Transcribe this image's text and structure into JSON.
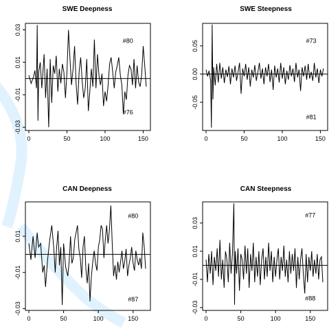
{
  "chart_data": [
    {
      "type": "line",
      "title": "SWE Deepness",
      "xlim": [
        0,
        155
      ],
      "ylim": [
        -0.032,
        0.034
      ],
      "xticks": [
        0,
        50,
        100,
        150
      ],
      "yticks": [
        -0.03,
        -0.01,
        0.01,
        0.03
      ],
      "xtick_labels": [
        "0",
        "50",
        "100",
        "150"
      ],
      "ytick_labels": [
        "-0.03",
        "-0.01",
        "0.01",
        "0.03"
      ],
      "annotations": [
        {
          "text": "#80",
          "x": 130,
          "y": 0.022
        },
        {
          "text": "#76",
          "x": 130,
          "y": -0.022
        }
      ],
      "x": [
        0,
        3,
        6,
        8,
        10,
        11,
        12,
        13,
        15,
        17,
        20,
        22,
        24,
        26,
        28,
        30,
        32,
        34,
        36,
        38,
        40,
        42,
        44,
        46,
        48,
        50,
        52,
        54,
        56,
        58,
        60,
        62,
        64,
        66,
        68,
        70,
        72,
        74,
        76,
        78,
        80,
        82,
        84,
        86,
        88,
        90,
        92,
        94,
        96,
        98,
        100,
        102,
        104,
        106,
        108,
        110,
        112,
        114,
        116,
        118,
        120,
        122,
        124,
        126,
        128,
        130,
        132,
        134,
        136,
        138,
        140,
        142,
        144,
        146,
        148,
        150,
        152,
        154
      ],
      "values": [
        0.002,
        -0.003,
        0.001,
        0.005,
        -0.006,
        0.033,
        -0.026,
        0.004,
        0.01,
        -0.006,
        0.015,
        -0.012,
        0.006,
        -0.03,
        0.012,
        -0.015,
        0.008,
        0.003,
        0.014,
        -0.008,
        0.006,
        -0.003,
        0.009,
        0.004,
        -0.012,
        0.004,
        0.03,
        0.012,
        -0.004,
        0.006,
        0.02,
        -0.003,
        -0.016,
        0.004,
        0.013,
        -0.002,
        -0.012,
        -0.006,
        0.012,
        -0.02,
        -0.008,
        0.006,
        -0.005,
        0.024,
        -0.006,
        0.015,
        0.002,
        -0.004,
        0.003,
        -0.017,
        -0.008,
        -0.014,
        -0.004,
        0.009,
        0.013,
        0.004,
        -0.006,
        0.004,
        0.008,
        0.013,
        0.002,
        -0.004,
        -0.022,
        -0.008,
        -0.013,
        0.002,
        0.008,
        0.006,
        -0.004,
        0.012,
        -0.006,
        0.008,
        -0.002,
        -0.005,
        0.002,
        0.02,
        0.008,
        -0.005
      ],
      "grid": false
    },
    {
      "type": "line",
      "title": "SWE Steepness",
      "xlim": [
        0,
        155
      ],
      "ylim": [
        -0.1,
        0.09
      ],
      "xticks": [
        0,
        50,
        100,
        150
      ],
      "yticks": [
        -0.05,
        0.0,
        0.05
      ],
      "xtick_labels": [
        "0",
        "50",
        "100",
        "150"
      ],
      "ytick_labels": [
        "-0.05",
        "0.00",
        "0.05"
      ],
      "annotations": [
        {
          "text": "#73",
          "x": 138,
          "y": 0.055
        },
        {
          "text": "#81",
          "x": 138,
          "y": -0.08
        }
      ],
      "x": [
        0,
        2,
        4,
        6,
        7,
        8,
        9,
        10,
        12,
        14,
        16,
        18,
        20,
        22,
        24,
        26,
        28,
        30,
        32,
        34,
        36,
        38,
        40,
        42,
        44,
        46,
        48,
        50,
        52,
        54,
        56,
        58,
        60,
        62,
        64,
        66,
        68,
        70,
        72,
        74,
        76,
        78,
        80,
        82,
        84,
        86,
        88,
        90,
        92,
        94,
        96,
        98,
        100,
        102,
        104,
        106,
        108,
        110,
        112,
        114,
        116,
        118,
        120,
        122,
        124,
        126,
        128,
        130,
        132,
        134,
        136,
        138,
        140,
        142,
        144,
        146,
        148,
        150,
        152,
        154
      ],
      "values": [
        0.008,
        -0.004,
        0.006,
        -0.012,
        -0.095,
        0.088,
        -0.045,
        0.012,
        -0.02,
        0.018,
        -0.015,
        0.02,
        -0.008,
        0.012,
        -0.016,
        0.008,
        -0.005,
        0.014,
        -0.018,
        0.01,
        -0.006,
        0.015,
        -0.012,
        0.004,
        0.02,
        -0.035,
        0.01,
        -0.004,
        0.018,
        -0.01,
        0.012,
        -0.022,
        0.008,
        -0.006,
        0.016,
        -0.012,
        0.004,
        0.02,
        -0.008,
        0.01,
        -0.018,
        0.012,
        -0.004,
        0.018,
        -0.014,
        0.008,
        -0.028,
        0.015,
        -0.006,
        0.01,
        -0.015,
        0.02,
        -0.008,
        0.012,
        -0.018,
        0.006,
        -0.01,
        0.016,
        -0.004,
        0.01,
        -0.014,
        0.02,
        -0.006,
        0.008,
        -0.03,
        0.012,
        -0.004,
        0.015,
        -0.01,
        0.018,
        -0.008,
        0.004,
        -0.012,
        0.02,
        -0.006,
        0.01,
        -0.016,
        0.008,
        -0.004,
        0.01
      ],
      "grid": false
    },
    {
      "type": "line",
      "title": "CAN Deepness",
      "xlim": [
        0,
        170
      ],
      "ylim": [
        -0.031,
        0.029
      ],
      "xticks": [
        0,
        50,
        100,
        150
      ],
      "yticks": [
        -0.03,
        -0.01,
        0.01
      ],
      "xtick_labels": [
        "0",
        "50",
        "100",
        "150"
      ],
      "ytick_labels": [
        "-0.03",
        "-0.01",
        "0.01"
      ],
      "annotations": [
        {
          "text": "#80",
          "x": 150,
          "y": 0.02
        },
        {
          "text": "#87",
          "x": 150,
          "y": -0.026
        }
      ],
      "x": [
        0,
        3,
        6,
        9,
        12,
        14,
        17,
        20,
        22,
        24,
        27,
        30,
        33,
        36,
        38,
        40,
        42,
        44,
        46,
        48,
        50,
        53,
        56,
        58,
        60,
        62,
        64,
        66,
        68,
        70,
        72,
        74,
        76,
        78,
        80,
        82,
        84,
        86,
        88,
        90,
        92,
        94,
        96,
        98,
        100,
        102,
        104,
        106,
        108,
        110,
        112,
        114,
        116,
        118,
        120,
        122,
        124,
        126,
        128,
        130,
        132,
        134,
        136,
        138,
        140,
        142,
        144,
        146,
        148,
        150,
        152,
        154,
        156,
        158,
        160,
        162,
        164,
        166,
        168
      ],
      "values": [
        0.006,
        -0.003,
        0.01,
        -0.002,
        0.012,
        0.004,
        0.006,
        -0.01,
        -0.006,
        -0.018,
        -0.003,
        0.008,
        0.016,
        0.003,
        -0.01,
        0.004,
        0.013,
        -0.006,
        0.004,
        -0.028,
        0.006,
        -0.007,
        -0.012,
        -0.004,
        0.01,
        -0.005,
        -0.002,
        0.008,
        0.012,
        0.016,
        0.003,
        -0.002,
        -0.013,
        0.004,
        0.01,
        -0.008,
        -0.016,
        -0.005,
        -0.026,
        -0.012,
        -0.004,
        0.002,
        -0.005,
        -0.009,
        0.004,
        0.008,
        0.016,
        0.014,
        -0.002,
        0.008,
        0.016,
        0.006,
        0.014,
        0.027,
        0.006,
        -0.012,
        -0.006,
        -0.014,
        -0.004,
        -0.01,
        -0.004,
        0.002,
        -0.008,
        -0.004,
        0.003,
        -0.012,
        -0.006,
        -0.002,
        0.004,
        -0.005,
        -0.009,
        0.002,
        -0.003,
        -0.006,
        -0.002,
        -0.008,
        0.012,
        0.004,
        -0.008
      ],
      "grid": false
    },
    {
      "type": "line",
      "title": "CAN Steepness",
      "xlim": [
        0,
        170
      ],
      "ylim": [
        -0.032,
        0.045
      ],
      "xticks": [
        0,
        50,
        100,
        150
      ],
      "yticks": [
        -0.03,
        -0.01,
        0.01,
        0.03
      ],
      "xtick_labels": [
        "0",
        "50",
        "100",
        "150"
      ],
      "ytick_labels": [
        "-0.03",
        "-0.01",
        "0.01",
        "0.03"
      ],
      "annotations": [
        {
          "text": "#77",
          "x": 150,
          "y": 0.034
        },
        {
          "text": "#88",
          "x": 150,
          "y": -0.025
        }
      ],
      "x": [
        0,
        2,
        4,
        6,
        8,
        10,
        12,
        14,
        16,
        18,
        20,
        22,
        24,
        26,
        28,
        30,
        32,
        34,
        36,
        38,
        40,
        41,
        42,
        44,
        46,
        48,
        50,
        52,
        54,
        56,
        58,
        60,
        62,
        64,
        66,
        68,
        70,
        72,
        74,
        76,
        78,
        80,
        82,
        84,
        86,
        88,
        90,
        92,
        94,
        96,
        98,
        100,
        102,
        104,
        106,
        108,
        110,
        112,
        114,
        116,
        118,
        120,
        122,
        124,
        126,
        128,
        130,
        132,
        134,
        136,
        138,
        140,
        142,
        144,
        146,
        148,
        150,
        152,
        154,
        156,
        158,
        160,
        162,
        164,
        166,
        168
      ],
      "values": [
        0.004,
        -0.012,
        0.008,
        -0.006,
        0.01,
        -0.014,
        0.006,
        -0.004,
        0.012,
        -0.008,
        0.018,
        -0.01,
        0.004,
        -0.016,
        0.01,
        0.004,
        -0.012,
        0.016,
        -0.006,
        0.008,
        0.044,
        -0.028,
        0.01,
        -0.006,
        0.012,
        -0.018,
        0.008,
        0.004,
        -0.01,
        0.014,
        -0.006,
        0.012,
        -0.016,
        0.008,
        -0.004,
        0.016,
        -0.012,
        0.006,
        -0.008,
        0.01,
        -0.014,
        0.004,
        0.012,
        -0.01,
        0.006,
        -0.008,
        0.016,
        -0.004,
        0.01,
        -0.012,
        0.006,
        -0.008,
        0.004,
        0.012,
        -0.01,
        0.006,
        -0.004,
        0.014,
        -0.008,
        0.004,
        -0.012,
        0.01,
        -0.006,
        0.008,
        -0.004,
        0.012,
        -0.016,
        0.006,
        -0.01,
        0.004,
        0.012,
        -0.006,
        -0.02,
        0.008,
        -0.012,
        0.006,
        -0.004,
        0.01,
        -0.008,
        0.004,
        -0.006,
        0.008,
        -0.01,
        0.004,
        0.006,
        -0.012
      ],
      "grid": false
    }
  ]
}
